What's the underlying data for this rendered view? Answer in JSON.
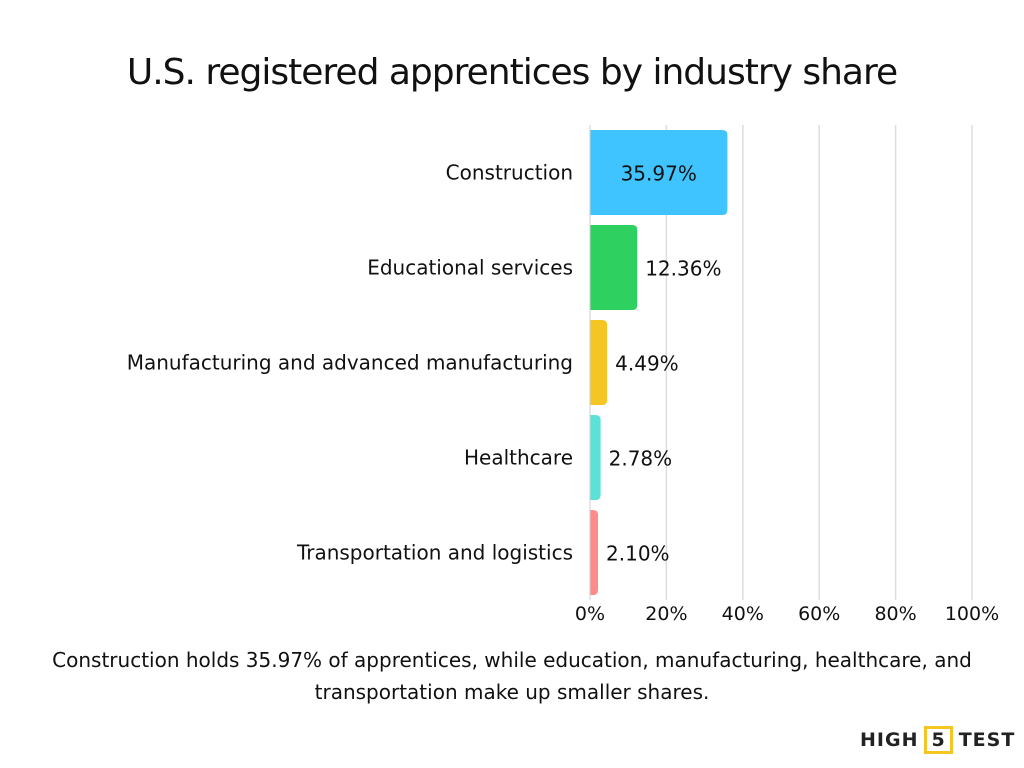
{
  "chart_data": {
    "type": "bar",
    "orientation": "horizontal",
    "title": "U.S. registered apprentices by industry share",
    "categories": [
      "Construction",
      "Educational services",
      "Manufacturing and advanced manufacturing",
      "Healthcare",
      "Transportation and logistics"
    ],
    "values": [
      35.97,
      12.36,
      4.49,
      2.78,
      2.1
    ],
    "data_labels": [
      "35.97%",
      "12.36%",
      "4.49%",
      "2.78%",
      "2.10%"
    ],
    "colors": [
      "#40C4FF",
      "#2ED15F",
      "#F5C623",
      "#5CE1D6",
      "#FF8A8A"
    ],
    "xlim": [
      0,
      100
    ],
    "x_ticks": [
      0,
      20,
      40,
      60,
      80,
      100
    ],
    "x_tick_labels": [
      "0%",
      "20%",
      "40%",
      "60%",
      "80%",
      "100%"
    ],
    "grid": true,
    "xlabel": "",
    "ylabel": ""
  },
  "caption": "Construction holds 35.97% of apprentices, while education, manufacturing, healthcare, and transportation make up smaller shares.",
  "logo": {
    "left": "HIGH",
    "mid": "5",
    "right": "TEST"
  }
}
